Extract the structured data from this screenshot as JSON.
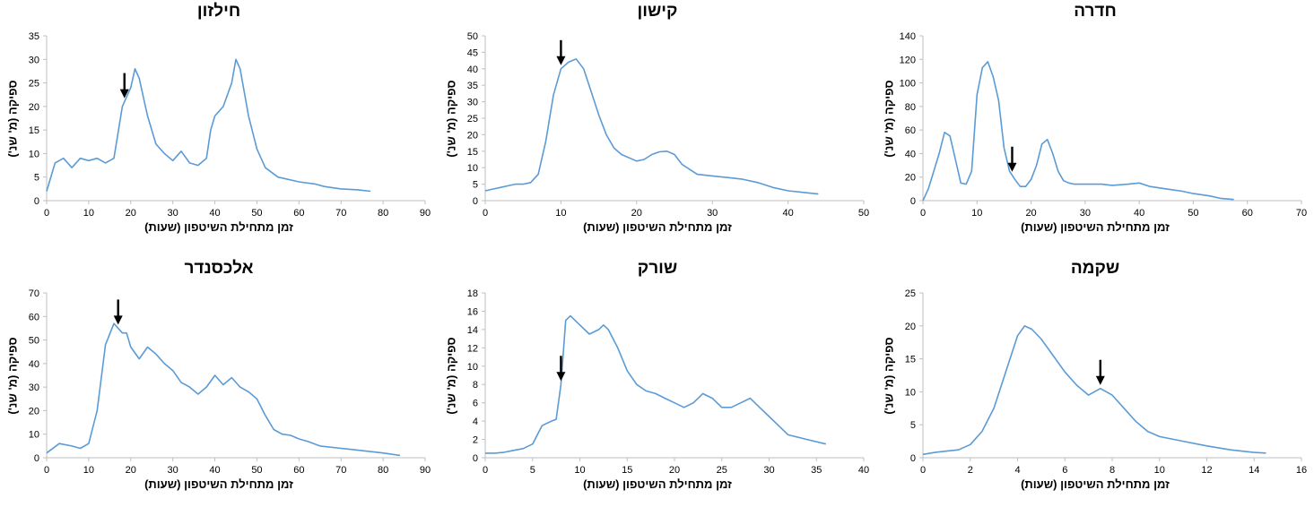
{
  "colors": {
    "line": "#5b9bd5",
    "axis": "#bfbfbf",
    "arrow": "#000000",
    "text": "#000000"
  },
  "chart_data": [
    {
      "type": "line",
      "title": "חדרה",
      "xlabel": "זמן מתחילת השיטפון (שעות)",
      "ylabel": "ספיקה (מ' שנ')",
      "xlim": [
        0,
        70
      ],
      "ylim": [
        0,
        140
      ],
      "xticks": [
        0,
        10,
        20,
        30,
        40,
        50,
        60,
        70
      ],
      "yticks": [
        0,
        20,
        40,
        60,
        80,
        100,
        120,
        140
      ],
      "arrow_x": 16.5,
      "x": [
        0,
        1,
        2,
        3,
        4,
        5,
        6,
        7,
        8,
        9,
        10,
        11,
        12,
        13,
        14,
        15,
        16,
        17,
        18,
        19,
        20,
        21,
        22,
        23,
        24,
        25,
        26,
        27,
        28,
        30,
        33,
        35,
        38,
        40,
        42,
        45,
        48,
        50,
        53,
        55,
        57.5
      ],
      "y": [
        0,
        10,
        25,
        40,
        58,
        55,
        35,
        15,
        14,
        25,
        90,
        113,
        118,
        105,
        85,
        45,
        25,
        18,
        12,
        12,
        18,
        30,
        48,
        52,
        40,
        25,
        17,
        15,
        14,
        14,
        14,
        13,
        14,
        15,
        12,
        10,
        8,
        6,
        4,
        2,
        1
      ]
    },
    {
      "type": "line",
      "title": "קישון",
      "xlabel": "זמן מתחילת השיטפון (שעות)",
      "ylabel": "ספיקה (מ' שנ')",
      "xlim": [
        0,
        50
      ],
      "ylim": [
        0,
        50
      ],
      "xticks": [
        0,
        10,
        20,
        30,
        40,
        50
      ],
      "yticks": [
        0,
        5,
        10,
        15,
        20,
        25,
        30,
        35,
        40,
        45,
        50
      ],
      "arrow_x": 10,
      "x": [
        0,
        1,
        2,
        3,
        4,
        5,
        6,
        7,
        8,
        9,
        10,
        11,
        12,
        13,
        14,
        15,
        16,
        17,
        18,
        19,
        20,
        21,
        22,
        23,
        24,
        25,
        26,
        28,
        30,
        32,
        34,
        36,
        38,
        40,
        42,
        44
      ],
      "y": [
        3,
        3.5,
        4,
        4.5,
        5,
        5,
        5.5,
        8,
        18,
        32,
        40,
        42,
        43,
        40,
        33,
        26,
        20,
        16,
        14,
        13,
        12,
        12.5,
        14,
        14.8,
        15,
        14,
        11,
        8,
        7.5,
        7,
        6.5,
        5.5,
        4,
        3,
        2.5,
        2
      ]
    },
    {
      "type": "line",
      "title": "חילזון",
      "xlabel": "זמן מתחילת השיטפון (שעות)",
      "ylabel": "ספיקה (מ' שנ')",
      "xlim": [
        0,
        90
      ],
      "ylim": [
        0,
        35
      ],
      "xticks": [
        0,
        10,
        20,
        30,
        40,
        50,
        60,
        70,
        80,
        90
      ],
      "yticks": [
        0,
        5,
        10,
        15,
        20,
        25,
        30,
        35
      ],
      "arrow_x": 18.5,
      "x": [
        0,
        2,
        4,
        6,
        8,
        10,
        12,
        14,
        16,
        18,
        19,
        20,
        21,
        22,
        23,
        24,
        26,
        28,
        30,
        32,
        34,
        36,
        38,
        39,
        40,
        42,
        44,
        45,
        46,
        48,
        50,
        52,
        55,
        60,
        64,
        66,
        70,
        74,
        77
      ],
      "y": [
        2,
        8,
        9,
        7,
        9,
        8.5,
        9,
        8,
        9,
        20,
        22,
        24,
        28,
        26,
        22,
        18,
        12,
        10,
        8.5,
        10.5,
        8,
        7.5,
        9,
        15,
        18,
        20,
        25,
        30,
        28,
        18,
        11,
        7,
        5,
        4,
        3.5,
        3,
        2.5,
        2.3,
        2
      ]
    },
    {
      "type": "line",
      "title": "שקמה",
      "xlabel": "זמן מתחילת השיטפון (שעות)",
      "ylabel": "ספיקה (מ' שנ')",
      "xlim": [
        0,
        16
      ],
      "ylim": [
        0,
        25
      ],
      "xticks": [
        0,
        2,
        4,
        6,
        8,
        10,
        12,
        14,
        16
      ],
      "yticks": [
        0,
        5,
        10,
        15,
        20,
        25
      ],
      "arrow_x": 7.5,
      "x": [
        0,
        0.5,
        1,
        1.5,
        2,
        2.5,
        3,
        3.5,
        4,
        4.3,
        4.6,
        5,
        5.5,
        6,
        6.5,
        7,
        7.5,
        8,
        8.5,
        9,
        9.5,
        10,
        11,
        12,
        13,
        14,
        14.5
      ],
      "y": [
        0.5,
        0.8,
        1,
        1.2,
        2,
        4,
        7.5,
        13,
        18.5,
        20,
        19.5,
        18,
        15.5,
        13,
        11,
        9.5,
        10.5,
        9.5,
        7.5,
        5.5,
        4,
        3.2,
        2.5,
        1.8,
        1.2,
        0.8,
        0.7
      ]
    },
    {
      "type": "line",
      "title": "שורק",
      "xlabel": "זמן מתחילת השיטפון (שעות)",
      "ylabel": "ספיקה (מ' שנ')",
      "xlim": [
        0,
        40
      ],
      "ylim": [
        0,
        18
      ],
      "xticks": [
        0,
        5,
        10,
        15,
        20,
        25,
        30,
        35,
        40
      ],
      "yticks": [
        0,
        2,
        4,
        6,
        8,
        10,
        12,
        14,
        16,
        18
      ],
      "arrow_x": 8,
      "x": [
        0,
        1,
        2,
        3,
        4,
        5,
        6,
        7,
        7.5,
        8,
        8.5,
        9,
        10,
        11,
        12,
        12.5,
        13,
        14,
        15,
        16,
        17,
        18,
        19,
        20,
        21,
        22,
        23,
        24,
        25,
        26,
        27,
        28,
        29,
        30,
        31,
        32,
        34,
        36
      ],
      "y": [
        0.5,
        0.5,
        0.6,
        0.8,
        1,
        1.5,
        3.5,
        4,
        4.2,
        8,
        15,
        15.5,
        14.5,
        13.5,
        14,
        14.5,
        14,
        12,
        9.5,
        8,
        7.3,
        7,
        6.5,
        6,
        5.5,
        6,
        7,
        6.5,
        5.5,
        5.5,
        6,
        6.5,
        5.5,
        4.5,
        3.5,
        2.5,
        2,
        1.5
      ]
    },
    {
      "type": "line",
      "title": "אלכסנדר",
      "xlabel": "זמן מתחילת השיטפון (שעות)",
      "ylabel": "ספיקה (מ' שנ')",
      "xlim": [
        0,
        90
      ],
      "ylim": [
        0,
        70
      ],
      "xticks": [
        0,
        10,
        20,
        30,
        40,
        50,
        60,
        70,
        80,
        90
      ],
      "yticks": [
        0,
        10,
        20,
        30,
        40,
        50,
        60,
        70
      ],
      "arrow_x": 17,
      "x": [
        0,
        3,
        6,
        8,
        10,
        12,
        14,
        16,
        18,
        19,
        20,
        22,
        24,
        26,
        28,
        30,
        32,
        34,
        36,
        38,
        40,
        42,
        44,
        46,
        48,
        50,
        52,
        54,
        56,
        58,
        60,
        62,
        65,
        70,
        75,
        80,
        84
      ],
      "y": [
        2,
        6,
        5,
        4,
        6,
        20,
        48,
        57,
        53,
        53,
        47,
        42,
        47,
        44,
        40,
        37,
        32,
        30,
        27,
        30,
        35,
        31,
        34,
        30,
        28,
        25,
        18,
        12,
        10,
        9.5,
        8,
        7,
        5,
        4,
        3,
        2,
        1
      ]
    }
  ]
}
